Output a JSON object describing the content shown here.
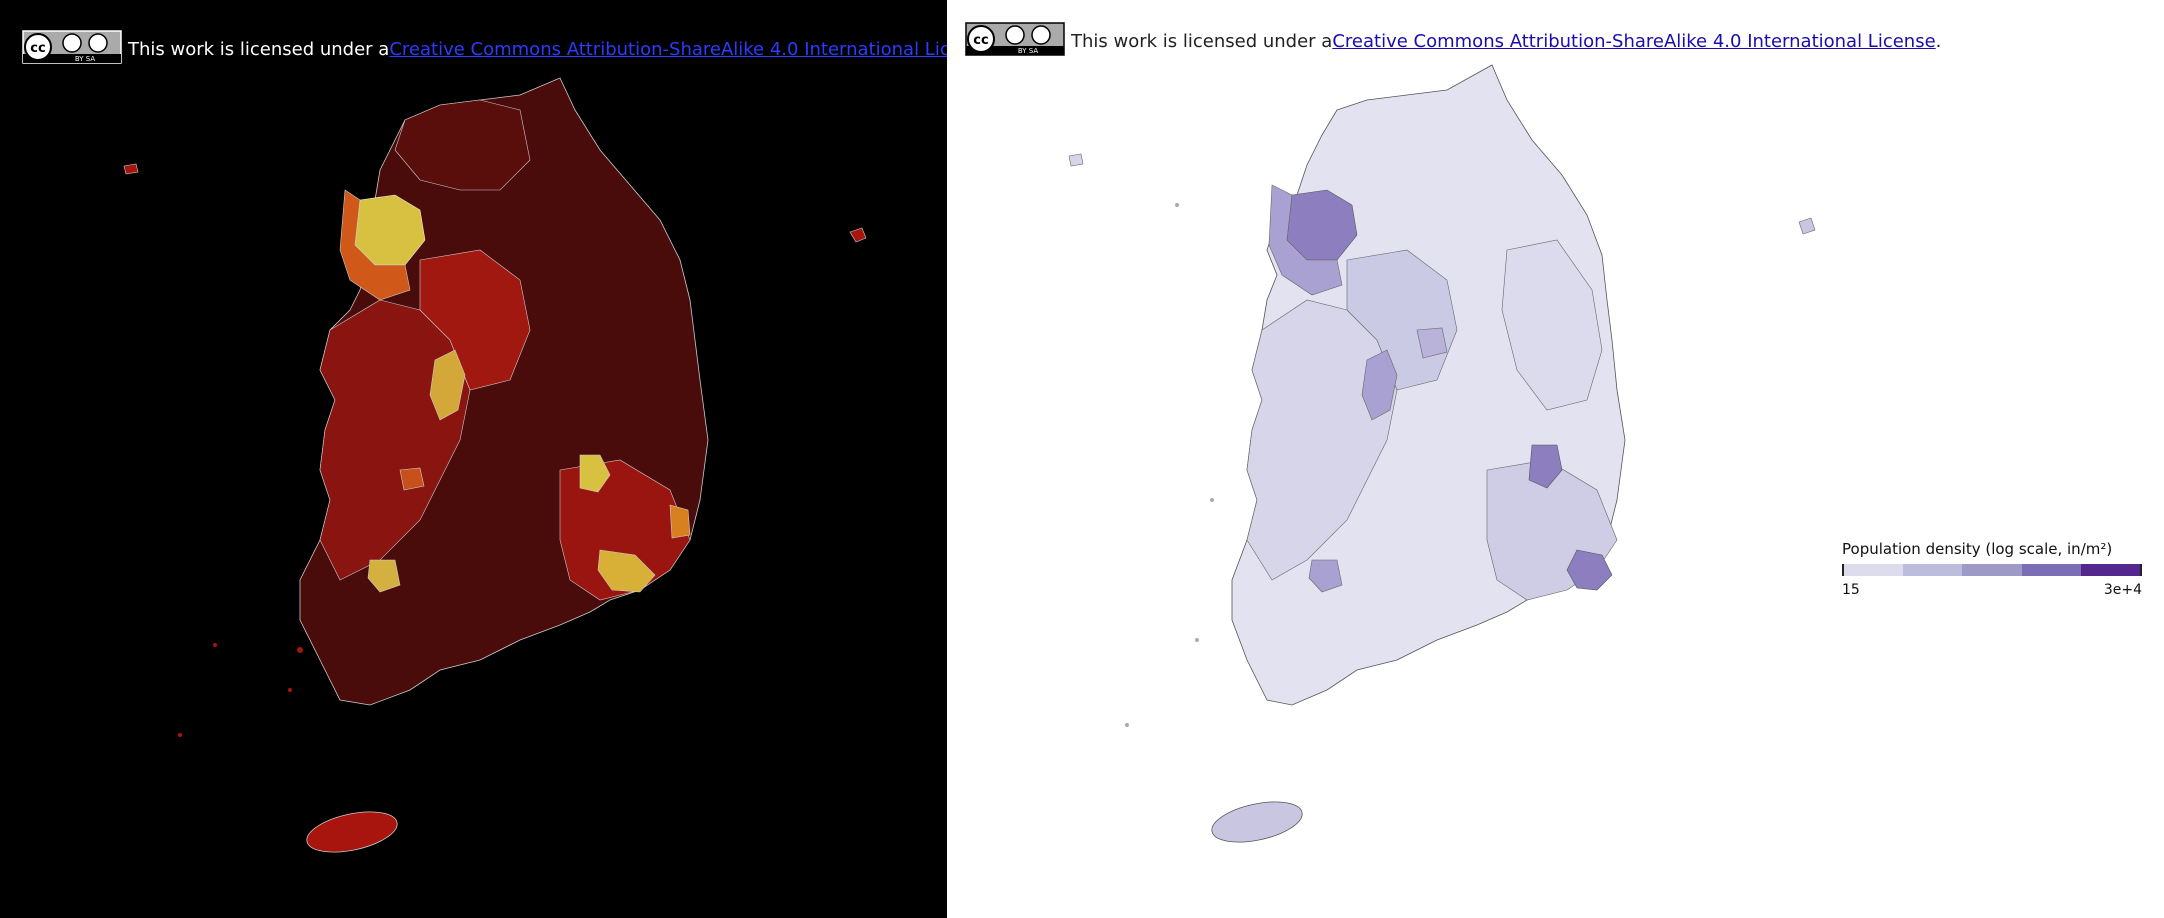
{
  "license": {
    "prefix": "This work is licensed under a ",
    "link_text": "Creative Commons Attribution-ShareAlike 4.0 International License",
    "suffix": ".",
    "badge_text": "BY SA",
    "badge_cc": "cc"
  },
  "legend": {
    "title": "Population density (log scale, in/m²)",
    "min_label": "15",
    "max_label": "3e+4",
    "colors": [
      "#dcdcec",
      "#bcbcdc",
      "#9e9ac8",
      "#7b6eb5",
      "#54278f"
    ]
  },
  "colors": {
    "dark_bg": "#000000",
    "dark_low": "#3a0a0a",
    "dark_mid": "#b01a0f",
    "dark_high": "#e0c040",
    "light_low": "#e6e6f2",
    "light_high": "#6a51a3"
  }
}
